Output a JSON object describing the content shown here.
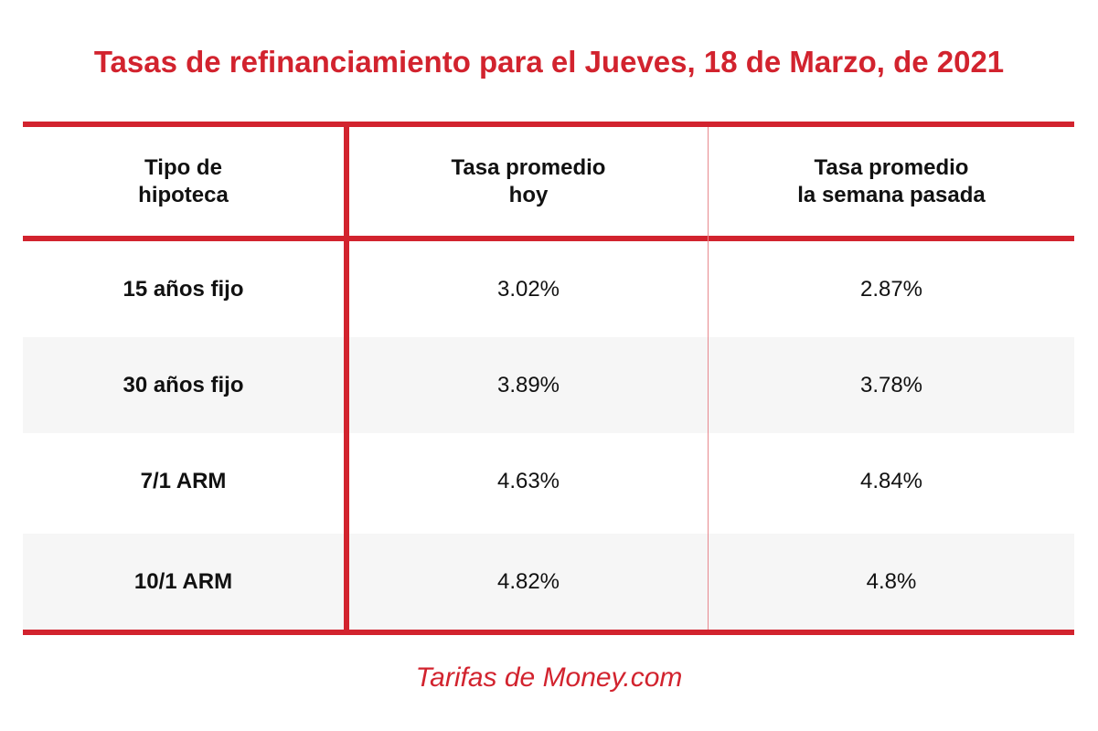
{
  "title": "Tasas de refinanciamiento para el Jueves, 18 de Marzo, de 2021",
  "source": "Tarifas de Money.com",
  "colors": {
    "accent": "#d2232e",
    "row_shade": "#f6f6f6"
  },
  "chart_data": {
    "type": "table",
    "title": "Tasas de refinanciamiento para el Jueves, 18 de Marzo, de 2021",
    "columns": [
      [
        "Tipo de",
        "hipoteca"
      ],
      [
        "Tasa promedio",
        "hoy"
      ],
      [
        "Tasa promedio",
        "la semana pasada"
      ]
    ],
    "rows": [
      {
        "type": "15 años fijo",
        "today": "3.02%",
        "last_week": "2.87%"
      },
      {
        "type": "30 años fijo",
        "today": "3.89%",
        "last_week": "3.78%"
      },
      {
        "type": "7/1 ARM",
        "today": "4.63%",
        "last_week": "4.84%"
      },
      {
        "type": "10/1 ARM",
        "today": "4.82%",
        "last_week": "4.8%"
      }
    ],
    "values": {
      "today": [
        3.02,
        3.89,
        4.63,
        4.82
      ],
      "last_week": [
        2.87,
        3.78,
        4.84,
        4.8
      ]
    }
  }
}
